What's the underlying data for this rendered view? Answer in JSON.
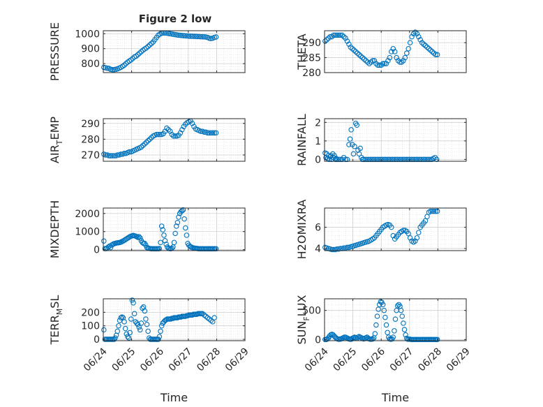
{
  "figure": {
    "title": "Figure 2 low"
  },
  "chart_data": [
    {
      "type": "scatter",
      "ylabel": "PRESSURE",
      "ylim": [
        740,
        1020
      ],
      "yticks": [
        800,
        900,
        1000
      ],
      "xticklabels": [],
      "grid": true,
      "marker_color": "#0072BD",
      "x": [
        0.02,
        0.08,
        0.14,
        0.2,
        0.26,
        0.32,
        0.38,
        0.44,
        0.5,
        0.56,
        0.62,
        0.68,
        0.74,
        0.8,
        0.86,
        0.92,
        0.98,
        1.04,
        1.1,
        1.16,
        1.22,
        1.28,
        1.34,
        1.4,
        1.46,
        1.52,
        1.58,
        1.64,
        1.7,
        1.76,
        1.82,
        1.88,
        1.94,
        2.0,
        2.06,
        2.12,
        2.18,
        2.24,
        2.3,
        2.36,
        2.42,
        2.48,
        2.54,
        2.6,
        2.66,
        2.72,
        2.78,
        2.84,
        2.9,
        2.96,
        3.02,
        3.08,
        3.14,
        3.2,
        3.26,
        3.32,
        3.38,
        3.44,
        3.5,
        3.56,
        3.62,
        3.68,
        3.74,
        3.8,
        3.86,
        3.92,
        3.98
      ],
      "y": [
        775,
        772,
        770,
        768,
        762,
        760,
        760,
        762,
        765,
        770,
        775,
        782,
        790,
        800,
        810,
        818,
        825,
        835,
        845,
        850,
        860,
        870,
        880,
        890,
        898,
        905,
        915,
        925,
        935,
        945,
        960,
        975,
        990,
        998,
        1003,
        1005,
        1005,
        1004,
        1002,
        1000,
        998,
        996,
        994,
        992,
        990,
        989,
        988,
        987,
        986,
        985,
        984,
        983,
        983,
        982,
        982,
        981,
        981,
        980,
        980,
        979,
        978,
        975,
        970,
        968,
        970,
        975,
        978
      ]
    },
    {
      "type": "scatter",
      "ylabel": "THETA",
      "ylim": [
        280,
        294
      ],
      "yticks": [
        280,
        285,
        290
      ],
      "xticklabels": [],
      "grid": true,
      "marker_color": "#0072BD",
      "x": [
        0.02,
        0.08,
        0.14,
        0.2,
        0.26,
        0.32,
        0.38,
        0.44,
        0.5,
        0.56,
        0.62,
        0.68,
        0.74,
        0.8,
        0.86,
        0.92,
        0.98,
        1.04,
        1.1,
        1.16,
        1.22,
        1.28,
        1.34,
        1.4,
        1.46,
        1.52,
        1.58,
        1.64,
        1.7,
        1.76,
        1.82,
        1.88,
        1.94,
        2.0,
        2.06,
        2.12,
        2.18,
        2.24,
        2.3,
        2.36,
        2.42,
        2.48,
        2.54,
        2.6,
        2.66,
        2.72,
        2.78,
        2.84,
        2.9,
        2.96,
        3.02,
        3.08,
        3.14,
        3.2,
        3.26,
        3.32,
        3.38,
        3.44,
        3.5,
        3.56,
        3.62,
        3.68,
        3.74,
        3.8,
        3.86,
        3.92,
        3.98
      ],
      "y": [
        290.5,
        291,
        291.5,
        292,
        292,
        292.5,
        292.5,
        292.5,
        292.5,
        292.5,
        292.5,
        292,
        291.5,
        290.5,
        289.5,
        288.5,
        288,
        287.5,
        287,
        286.5,
        286,
        285.5,
        285,
        284.5,
        284,
        283.5,
        283,
        283.5,
        284,
        284,
        283,
        282.5,
        282.5,
        282.5,
        283,
        283,
        283,
        284,
        285,
        287,
        288,
        287,
        285,
        284,
        283.5,
        283.5,
        284,
        285,
        286.5,
        288,
        290,
        292,
        293,
        293.5,
        293,
        292,
        291,
        290,
        289.5,
        289,
        288.5,
        288,
        287.5,
        287,
        286.5,
        286,
        286
      ]
    },
    {
      "type": "scatter",
      "ylabel": "AIR",
      "ylabel_sub": "T",
      "ylabel_tail": "EMP",
      "ylim": [
        266,
        293
      ],
      "yticks": [
        270,
        280,
        290
      ],
      "xticklabels": [],
      "grid": true,
      "marker_color": "#0072BD",
      "x": [
        0.02,
        0.08,
        0.14,
        0.2,
        0.26,
        0.32,
        0.38,
        0.44,
        0.5,
        0.56,
        0.62,
        0.68,
        0.74,
        0.8,
        0.86,
        0.92,
        0.98,
        1.04,
        1.1,
        1.16,
        1.22,
        1.28,
        1.34,
        1.4,
        1.46,
        1.52,
        1.58,
        1.64,
        1.7,
        1.76,
        1.82,
        1.88,
        1.94,
        2.0,
        2.06,
        2.12,
        2.18,
        2.24,
        2.3,
        2.36,
        2.42,
        2.48,
        2.54,
        2.6,
        2.66,
        2.72,
        2.78,
        2.84,
        2.9,
        2.96,
        3.02,
        3.08,
        3.14,
        3.2,
        3.26,
        3.32,
        3.38,
        3.44,
        3.5,
        3.56,
        3.62,
        3.68,
        3.74,
        3.8,
        3.86,
        3.92,
        3.98
      ],
      "y": [
        270.5,
        270,
        270,
        269.5,
        269.5,
        269.5,
        269.5,
        269.5,
        270,
        270,
        270.5,
        270.5,
        271,
        271,
        271.5,
        272,
        272,
        272.5,
        273,
        273.5,
        274,
        274.5,
        275,
        276,
        277,
        278,
        279,
        280,
        281,
        282,
        282.5,
        283,
        283,
        283,
        283,
        283.5,
        285,
        287,
        286,
        285,
        283,
        282,
        282,
        282,
        282.5,
        284,
        286,
        288,
        289.5,
        290.5,
        291,
        291.5,
        290,
        288,
        286.5,
        286,
        285.5,
        285,
        285,
        284.5,
        284.5,
        284,
        284,
        284,
        284,
        284,
        284
      ]
    },
    {
      "type": "scatter",
      "ylabel": "RAINFALL",
      "ylim": [
        -0.1,
        2.2
      ],
      "yticks": [
        0,
        1,
        2
      ],
      "xticklabels": [],
      "grid": true,
      "marker_color": "#0072BD",
      "x": [
        0.02,
        0.05,
        0.08,
        0.11,
        0.14,
        0.17,
        0.2,
        0.23,
        0.26,
        0.29,
        0.32,
        0.35,
        0.38,
        0.41,
        0.44,
        0.5,
        0.56,
        0.62,
        0.68,
        0.74,
        0.8,
        0.86,
        0.9,
        0.94,
        0.98,
        1.02,
        1.06,
        1.1,
        1.14,
        1.18,
        1.22,
        1.26,
        1.3,
        1.34,
        1.38,
        1.44,
        1.5,
        1.56,
        1.62,
        1.68,
        1.74,
        1.8,
        1.86,
        1.92,
        1.98,
        2.04,
        2.1,
        2.16,
        2.22,
        2.28,
        2.34,
        2.4,
        2.46,
        2.52,
        2.58,
        2.64,
        2.7,
        2.76,
        2.82,
        2.88,
        2.94,
        3.0,
        3.06,
        3.12,
        3.18,
        3.24,
        3.3,
        3.36,
        3.42,
        3.48,
        3.54,
        3.6,
        3.66,
        3.72,
        3.78,
        3.84,
        3.9,
        3.96
      ],
      "y": [
        0.35,
        0.1,
        0.3,
        0.05,
        0.2,
        0,
        0.15,
        0.2,
        0,
        0.3,
        0.1,
        0.2,
        0,
        0.05,
        0,
        0,
        0,
        0,
        0.1,
        0,
        0,
        0.8,
        1.1,
        1.6,
        0.8,
        0.3,
        0.7,
        1.95,
        1.85,
        0.5,
        0.3,
        0.6,
        0.1,
        0,
        0,
        0,
        0,
        0,
        0,
        0,
        0,
        0,
        0,
        0,
        0,
        0,
        0,
        0,
        0,
        0,
        0,
        0,
        0,
        0,
        0,
        0,
        0,
        0,
        0,
        0,
        0,
        0,
        0,
        0,
        0,
        0,
        0,
        0,
        0,
        0,
        0,
        0,
        0,
        0,
        0,
        0.05,
        0.1,
        0
      ]
    },
    {
      "type": "scatter",
      "ylabel": "MIXDEPTH",
      "ylim": [
        -50,
        2300
      ],
      "yticks": [
        0,
        1000,
        2000
      ],
      "xticklabels": [],
      "grid": true,
      "marker_color": "#0072BD",
      "x": [
        0.02,
        0.06,
        0.1,
        0.14,
        0.18,
        0.22,
        0.26,
        0.3,
        0.34,
        0.38,
        0.42,
        0.46,
        0.5,
        0.54,
        0.58,
        0.62,
        0.66,
        0.7,
        0.74,
        0.78,
        0.82,
        0.86,
        0.9,
        0.94,
        0.98,
        1.02,
        1.06,
        1.1,
        1.14,
        1.18,
        1.22,
        1.26,
        1.3,
        1.34,
        1.38,
        1.42,
        1.46,
        1.5,
        1.54,
        1.58,
        1.62,
        1.66,
        1.7,
        1.74,
        1.78,
        1.82,
        1.86,
        1.9,
        1.94,
        1.98,
        2.02,
        2.06,
        2.1,
        2.14,
        2.18,
        2.22,
        2.26,
        2.3,
        2.34,
        2.38,
        2.42,
        2.46,
        2.5,
        2.54,
        2.58,
        2.62,
        2.66,
        2.7,
        2.74,
        2.78,
        2.82,
        2.86,
        2.9,
        2.94,
        2.98,
        3.02,
        3.06,
        3.1,
        3.14,
        3.18,
        3.22,
        3.26,
        3.3,
        3.34,
        3.38,
        3.42,
        3.46,
        3.5,
        3.54,
        3.58,
        3.62,
        3.66,
        3.7,
        3.74,
        3.78,
        3.82,
        3.86,
        3.9,
        3.94,
        3.98
      ],
      "y": [
        480,
        60,
        60,
        100,
        150,
        200,
        120,
        260,
        300,
        330,
        350,
        370,
        380,
        390,
        400,
        420,
        450,
        480,
        520,
        560,
        600,
        640,
        680,
        720,
        750,
        770,
        790,
        770,
        750,
        720,
        680,
        720,
        650,
        500,
        400,
        350,
        350,
        250,
        120,
        100,
        70,
        60,
        50,
        50,
        50,
        50,
        50,
        50,
        50,
        60,
        400,
        1300,
        1100,
        800,
        500,
        300,
        150,
        80,
        60,
        50,
        80,
        150,
        400,
        900,
        1300,
        1500,
        1800,
        2000,
        2100,
        2150,
        2200,
        1700,
        1200,
        800,
        350,
        250,
        180,
        150,
        120,
        100,
        90,
        80,
        70,
        60,
        50,
        50,
        50,
        50,
        50,
        50,
        50,
        50,
        50,
        50,
        50,
        50,
        50,
        50,
        50,
        50
      ]
    },
    {
      "type": "scatter",
      "ylabel": "H2OMIXRA",
      "ylim": [
        3.8,
        7.8
      ],
      "yticks": [
        4,
        6
      ],
      "xticklabels": [],
      "grid": true,
      "marker_color": "#0072BD",
      "x": [
        0.02,
        0.08,
        0.14,
        0.2,
        0.26,
        0.32,
        0.38,
        0.44,
        0.5,
        0.56,
        0.62,
        0.68,
        0.74,
        0.8,
        0.86,
        0.92,
        0.98,
        1.04,
        1.1,
        1.16,
        1.22,
        1.28,
        1.34,
        1.4,
        1.46,
        1.52,
        1.58,
        1.64,
        1.7,
        1.76,
        1.82,
        1.88,
        1.94,
        2.0,
        2.06,
        2.12,
        2.18,
        2.24,
        2.3,
        2.36,
        2.42,
        2.48,
        2.54,
        2.6,
        2.66,
        2.72,
        2.78,
        2.84,
        2.9,
        2.96,
        3.02,
        3.08,
        3.14,
        3.2,
        3.26,
        3.32,
        3.38,
        3.44,
        3.5,
        3.56,
        3.62,
        3.68,
        3.74,
        3.8,
        3.86,
        3.92,
        3.98
      ],
      "y": [
        4.1,
        4.05,
        4.0,
        3.95,
        3.9,
        3.9,
        3.9,
        3.95,
        3.95,
        4.0,
        4.0,
        4.05,
        4.05,
        4.1,
        4.1,
        4.15,
        4.2,
        4.25,
        4.3,
        4.35,
        4.4,
        4.45,
        4.5,
        4.55,
        4.6,
        4.65,
        4.7,
        4.8,
        4.9,
        5.0,
        5.2,
        5.4,
        5.6,
        5.8,
        6.0,
        6.1,
        6.2,
        6.25,
        6.2,
        6.0,
        5.2,
        4.9,
        5.1,
        5.3,
        5.5,
        5.6,
        5.7,
        5.7,
        5.6,
        5.4,
        5.0,
        4.7,
        4.6,
        4.7,
        5.0,
        5.5,
        6.0,
        6.2,
        6.4,
        6.6,
        7.0,
        7.4,
        7.5,
        7.5,
        7.5,
        7.5,
        7.5
      ]
    },
    {
      "type": "scatter",
      "ylabel": "TERR",
      "ylabel_sub": "M",
      "ylabel_tail": "SL",
      "ylim": [
        -10,
        300
      ],
      "yticks": [
        0,
        100,
        200
      ],
      "xticklabels": [
        "06/24",
        "06/25",
        "06/26",
        "06/27",
        "06/28",
        "06/29"
      ],
      "xlabel": "Time",
      "grid": true,
      "marker_color": "#0072BD",
      "x": [
        0.02,
        0.06,
        0.1,
        0.14,
        0.18,
        0.22,
        0.26,
        0.3,
        0.34,
        0.38,
        0.42,
        0.46,
        0.5,
        0.54,
        0.58,
        0.62,
        0.66,
        0.7,
        0.74,
        0.78,
        0.82,
        0.86,
        0.9,
        0.94,
        0.98,
        1.02,
        1.06,
        1.1,
        1.14,
        1.18,
        1.22,
        1.26,
        1.3,
        1.34,
        1.38,
        1.42,
        1.46,
        1.5,
        1.54,
        1.58,
        1.62,
        1.66,
        1.7,
        1.74,
        1.78,
        1.82,
        1.86,
        1.9,
        1.94,
        1.98,
        2.02,
        2.06,
        2.1,
        2.14,
        2.18,
        2.22,
        2.26,
        2.3,
        2.34,
        2.38,
        2.42,
        2.46,
        2.5,
        2.54,
        2.58,
        2.62,
        2.66,
        2.7,
        2.74,
        2.78,
        2.82,
        2.86,
        2.9,
        2.94,
        2.98,
        3.02,
        3.06,
        3.1,
        3.14,
        3.18,
        3.22,
        3.26,
        3.3,
        3.34,
        3.38,
        3.42,
        3.46,
        3.5,
        3.56,
        3.62,
        3.68,
        3.74,
        3.8,
        3.86,
        3.92
      ],
      "y": [
        70,
        0,
        0,
        0,
        0,
        0,
        0,
        0,
        0,
        0,
        10,
        30,
        60,
        100,
        140,
        160,
        165,
        160,
        130,
        80,
        40,
        20,
        10,
        50,
        150,
        290,
        270,
        190,
        130,
        120,
        110,
        90,
        70,
        120,
        230,
        240,
        210,
        150,
        110,
        60,
        10,
        0,
        0,
        0,
        0,
        0,
        0,
        0,
        0,
        20,
        60,
        100,
        120,
        130,
        140,
        145,
        150,
        150,
        150,
        150,
        155,
        155,
        160,
        160,
        160,
        160,
        165,
        165,
        165,
        170,
        170,
        170,
        170,
        175,
        175,
        180,
        180,
        180,
        180,
        185,
        185,
        185,
        185,
        190,
        190,
        190,
        190,
        190,
        180,
        170,
        160,
        150,
        140,
        130,
        160
      ]
    },
    {
      "type": "scatter",
      "ylabel": "SUN",
      "ylabel_sub": "F",
      "ylabel_tail": "LUX",
      "ylim": [
        -20,
        700
      ],
      "yticks": [
        0,
        500
      ],
      "xticklabels": [
        "06/24",
        "06/25",
        "06/26",
        "06/27",
        "06/28",
        "06/29"
      ],
      "xlabel": "Time",
      "grid": true,
      "marker_color": "#0072BD",
      "x": [
        0.02,
        0.06,
        0.1,
        0.14,
        0.18,
        0.22,
        0.26,
        0.3,
        0.34,
        0.38,
        0.42,
        0.46,
        0.5,
        0.54,
        0.58,
        0.62,
        0.66,
        0.7,
        0.74,
        0.78,
        0.82,
        0.86,
        0.9,
        0.94,
        0.98,
        1.02,
        1.06,
        1.1,
        1.14,
        1.18,
        1.22,
        1.26,
        1.3,
        1.34,
        1.38,
        1.42,
        1.46,
        1.5,
        1.54,
        1.58,
        1.62,
        1.66,
        1.7,
        1.74,
        1.78,
        1.82,
        1.86,
        1.9,
        1.94,
        1.98,
        2.02,
        2.06,
        2.1,
        2.14,
        2.18,
        2.22,
        2.26,
        2.3,
        2.34,
        2.38,
        2.42,
        2.46,
        2.5,
        2.54,
        2.58,
        2.62,
        2.66,
        2.7,
        2.74,
        2.78,
        2.82,
        2.86,
        2.9,
        2.94,
        2.98,
        3.02,
        3.06,
        3.1,
        3.14,
        3.18,
        3.22,
        3.26,
        3.3,
        3.34,
        3.38,
        3.42,
        3.46,
        3.5,
        3.54,
        3.58,
        3.62,
        3.66,
        3.7,
        3.74,
        3.78,
        3.82,
        3.86,
        3.9,
        3.94,
        3.98
      ],
      "y": [
        0,
        0,
        10,
        30,
        60,
        80,
        90,
        80,
        60,
        40,
        20,
        10,
        5,
        5,
        10,
        20,
        30,
        40,
        40,
        30,
        20,
        10,
        5,
        5,
        20,
        30,
        40,
        30,
        20,
        40,
        50,
        40,
        30,
        20,
        10,
        20,
        30,
        40,
        20,
        10,
        5,
        5,
        10,
        30,
        100,
        250,
        400,
        520,
        600,
        650,
        640,
        600,
        500,
        380,
        250,
        120,
        40,
        10,
        5,
        10,
        40,
        150,
        350,
        500,
        580,
        600,
        570,
        500,
        400,
        280,
        170,
        80,
        20,
        5,
        5,
        5,
        0,
        0,
        0,
        0,
        0,
        0,
        0,
        0,
        0,
        0,
        0,
        0,
        0,
        0,
        0,
        0,
        0,
        0,
        0,
        0,
        0,
        0,
        0,
        0
      ]
    }
  ]
}
